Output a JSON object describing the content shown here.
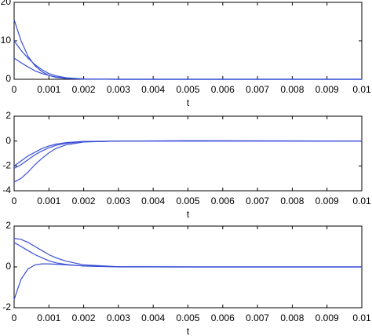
{
  "chart_data": [
    {
      "type": "line",
      "xlabel": "t",
      "x": [
        0,
        0.0002,
        0.0004,
        0.0006,
        0.0008,
        0.001,
        0.0012,
        0.0015,
        0.002,
        0.003,
        0.005,
        0.01
      ],
      "series": [
        {
          "color": "#3a4fd6",
          "values": [
            15.5,
            10,
            6,
            3.5,
            2,
            1,
            0.5,
            0.2,
            0.05,
            0,
            0,
            0
          ]
        },
        {
          "color": "#3a4fd6",
          "values": [
            10,
            7.5,
            5.5,
            3.8,
            2.5,
            1.5,
            0.9,
            0.4,
            0.1,
            0,
            0,
            0
          ]
        },
        {
          "color": "#3a4fd6",
          "values": [
            5.5,
            4.3,
            3.2,
            2.2,
            1.5,
            1,
            0.6,
            0.3,
            0.08,
            0,
            0,
            0
          ]
        }
      ],
      "xlim": [
        0,
        0.01
      ],
      "xticks": [
        0,
        0.001,
        0.002,
        0.003,
        0.004,
        0.005,
        0.006,
        0.007,
        0.008,
        0.009,
        0.01
      ],
      "ylim": [
        0,
        20
      ],
      "yticks": [
        0,
        10,
        20
      ]
    },
    {
      "type": "line",
      "xlabel": "t",
      "x": [
        0,
        0.0002,
        0.0004,
        0.0006,
        0.0008,
        0.001,
        0.0012,
        0.0015,
        0.002,
        0.003,
        0.005,
        0.01
      ],
      "series": [
        {
          "color": "#3a4fd6",
          "values": [
            -2,
            -1.6,
            -1.2,
            -0.9,
            -0.6,
            -0.4,
            -0.25,
            -0.12,
            -0.03,
            0,
            0,
            0
          ]
        },
        {
          "color": "#3a4fd6",
          "values": [
            -2.2,
            -1.9,
            -1.5,
            -1.1,
            -0.8,
            -0.55,
            -0.35,
            -0.18,
            -0.05,
            0,
            0,
            0
          ]
        },
        {
          "color": "#3a4fd6",
          "values": [
            -3.3,
            -3,
            -2.5,
            -1.9,
            -1.4,
            -0.95,
            -0.6,
            -0.3,
            -0.08,
            0,
            0.03,
            0
          ]
        }
      ],
      "xlim": [
        0,
        0.01
      ],
      "xticks": [
        0,
        0.001,
        0.002,
        0.003,
        0.004,
        0.005,
        0.006,
        0.007,
        0.008,
        0.009,
        0.01
      ],
      "ylim": [
        -4,
        2
      ],
      "yticks": [
        -4,
        -2,
        0,
        2
      ]
    },
    {
      "type": "line",
      "xlabel": "t",
      "x": [
        0,
        0.0002,
        0.0004,
        0.0006,
        0.0008,
        0.001,
        0.0012,
        0.0015,
        0.002,
        0.003,
        0.005,
        0.01
      ],
      "series": [
        {
          "color": "#3a4fd6",
          "values": [
            1.4,
            1.35,
            1.2,
            1,
            0.8,
            0.6,
            0.45,
            0.28,
            0.1,
            0.01,
            0,
            0
          ]
        },
        {
          "color": "#3a4fd6",
          "values": [
            1.2,
            1,
            0.8,
            0.6,
            0.45,
            0.3,
            0.2,
            0.12,
            0.04,
            0,
            0,
            0
          ]
        },
        {
          "color": "#3a4fd6",
          "values": [
            -1.6,
            -0.6,
            -0.1,
            0.1,
            0.15,
            0.15,
            0.13,
            0.1,
            0.05,
            0.01,
            0,
            0
          ]
        }
      ],
      "xlim": [
        0,
        0.01
      ],
      "xticks": [
        0,
        0.001,
        0.002,
        0.003,
        0.004,
        0.005,
        0.006,
        0.007,
        0.008,
        0.009,
        0.01
      ],
      "ylim": [
        -2,
        2
      ],
      "yticks": [
        -2,
        0,
        2
      ]
    }
  ]
}
